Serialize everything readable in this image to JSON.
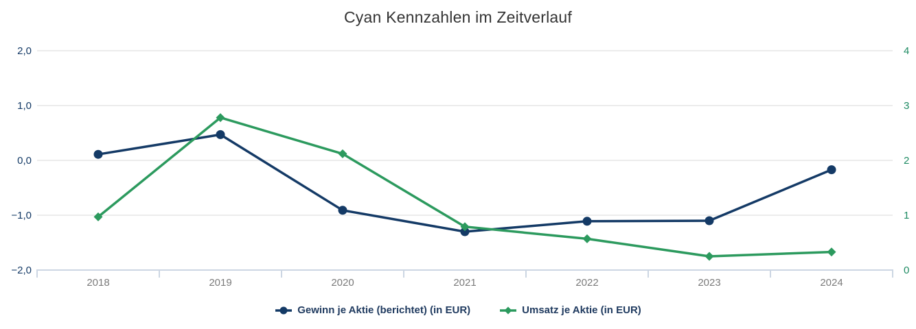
{
  "chart_data": {
    "type": "line",
    "title": "Cyan Kennzahlen im Zeitverlauf",
    "title_color": "#333333",
    "categories": [
      "2018",
      "2019",
      "2020",
      "2021",
      "2022",
      "2023",
      "2024"
    ],
    "series": [
      {
        "name": "Gewinn je Aktie (berichtet) (in EUR)",
        "color": "#143a66",
        "marker": "circle",
        "y_axis": "left",
        "values": [
          0.11,
          0.47,
          -0.91,
          -1.3,
          -1.11,
          -1.1,
          -0.17
        ]
      },
      {
        "name": "Umsatz je Aktie (in EUR)",
        "color": "#2c9a5e",
        "marker": "diamond",
        "y_axis": "right",
        "values": [
          0.97,
          2.78,
          2.12,
          0.79,
          0.57,
          0.25,
          0.33
        ]
      }
    ],
    "left_axis": {
      "min": -2,
      "max": 2,
      "tick_values": [
        2,
        1,
        0,
        -1,
        -2
      ],
      "tick_labels": [
        "2,0",
        "1,0",
        "0,0",
        "−1,0",
        "−2,0"
      ],
      "label_color": "#143a66"
    },
    "right_axis": {
      "min": 0,
      "max": 4,
      "tick_values": [
        4,
        3,
        2,
        1,
        0
      ],
      "tick_labels": [
        "4",
        "3",
        "2",
        "1",
        "0"
      ],
      "label_color": "#1d8a62"
    },
    "x_axis": {
      "label_color": "#7a7a7a"
    },
    "grid": {
      "grid_on": true,
      "line_color": "#e6e6e6",
      "axis_line_color": "#ccd6e3"
    },
    "legend": {
      "position": "bottom-center",
      "label_color": "#1f3a5f"
    }
  }
}
